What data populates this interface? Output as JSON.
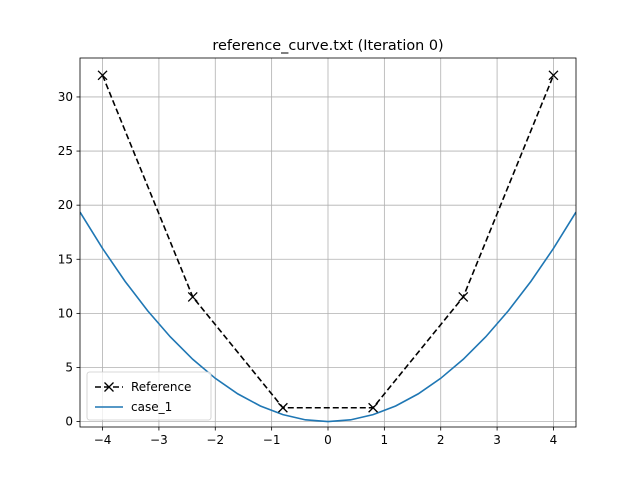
{
  "chart_data": {
    "type": "line",
    "title": "reference_curve.txt (Iteration 0)",
    "xlabel": "",
    "ylabel": "",
    "xlim": [
      -4.4,
      4.4
    ],
    "ylim": [
      -0.5,
      33.6
    ],
    "xticks": [
      -4,
      -3,
      -2,
      -1,
      0,
      1,
      2,
      3,
      4
    ],
    "xtick_labels": [
      "−4",
      "−3",
      "−2",
      "−1",
      "0",
      "1",
      "2",
      "3",
      "4"
    ],
    "yticks": [
      0,
      5,
      10,
      15,
      20,
      25,
      30
    ],
    "ytick_labels": [
      "0",
      "5",
      "10",
      "15",
      "20",
      "25",
      "30"
    ],
    "grid": true,
    "legend_position": "lower-left",
    "series": [
      {
        "name": "Reference",
        "style": "dashed",
        "marker": "x",
        "color": "#000000",
        "x": [
          -4.0,
          -2.4,
          -0.8,
          0.8,
          2.4,
          4.0
        ],
        "y": [
          32.0,
          11.52,
          1.28,
          1.28,
          11.52,
          32.0
        ]
      },
      {
        "name": "case_1",
        "style": "solid",
        "marker": "none",
        "color": "#1f77b4",
        "x": [
          -4.4,
          -4.0,
          -3.6,
          -3.2,
          -2.8,
          -2.4,
          -2.0,
          -1.6,
          -1.2,
          -0.8,
          -0.4,
          0.0,
          0.4,
          0.8,
          1.2,
          1.6,
          2.0,
          2.4,
          2.8,
          3.2,
          3.6,
          4.0,
          4.4
        ],
        "y": [
          19.36,
          16.0,
          12.96,
          10.24,
          7.84,
          5.76,
          4.0,
          2.56,
          1.44,
          0.64,
          0.16,
          0.0,
          0.16,
          0.64,
          1.44,
          2.56,
          4.0,
          5.76,
          7.84,
          10.24,
          12.96,
          16.0,
          19.36
        ]
      }
    ]
  }
}
